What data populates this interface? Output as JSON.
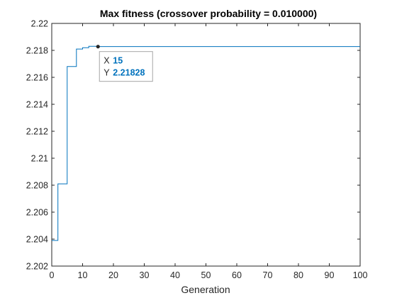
{
  "chart_data": {
    "type": "line",
    "title": "Max fitness (crossover probability = 0.010000)",
    "xlabel": "Generation",
    "ylabel": "",
    "xlim": [
      0,
      100
    ],
    "ylim": [
      2.202,
      2.22
    ],
    "xticks": [
      "0",
      "10",
      "20",
      "30",
      "40",
      "50",
      "60",
      "70",
      "80",
      "90",
      "100"
    ],
    "yticks": [
      "2.202",
      "2.204",
      "2.206",
      "2.208",
      "2.21",
      "2.212",
      "2.214",
      "2.216",
      "2.218",
      "2.22"
    ],
    "grid": false,
    "line_color": "#0072bd",
    "series": [
      {
        "step": true,
        "x": [
          0,
          1,
          2,
          3,
          4,
          5,
          6,
          7,
          8,
          9,
          10,
          11,
          12,
          13,
          14,
          15,
          100
        ],
        "values": [
          2.2039,
          2.2039,
          2.2081,
          2.2081,
          2.2081,
          2.2168,
          2.2168,
          2.2168,
          2.2181,
          2.2181,
          2.2182,
          2.2182,
          2.2183,
          2.2183,
          2.2183,
          2.21828,
          2.21828
        ]
      }
    ],
    "datatip": {
      "x_key": "X",
      "x_value": "15",
      "y_key": "Y",
      "y_value": "2.21828",
      "x": 15,
      "y": 2.21828
    }
  }
}
